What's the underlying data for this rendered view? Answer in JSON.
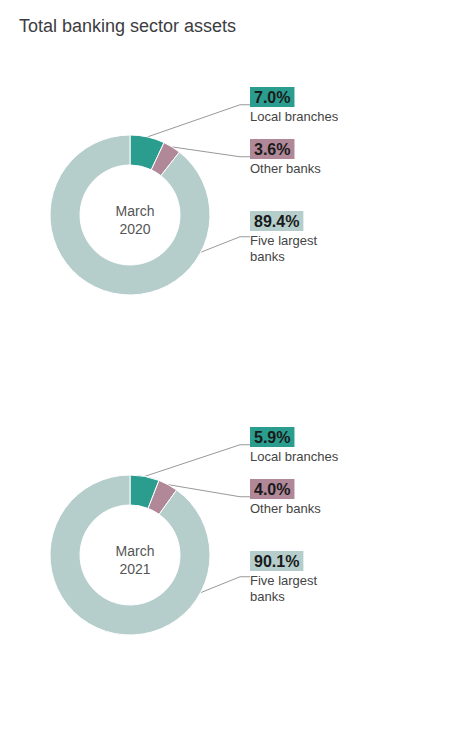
{
  "chart_data": [
    {
      "type": "pie",
      "title": "Total banking sector assets",
      "subtitle": "March\n2020",
      "categories": [
        "Local branches",
        "Other banks",
        "Five largest\nbanks"
      ],
      "values": [
        7.0,
        3.6,
        89.4
      ],
      "value_labels": [
        "7.0%",
        "3.6%",
        "89.4%"
      ],
      "colors": [
        "#2a9d8f",
        "#b08898",
        "#b5cecc"
      ],
      "data_labels": true
    },
    {
      "type": "pie",
      "subtitle": "March\n2021",
      "categories": [
        "Local branches",
        "Other banks",
        "Five largest\nbanks"
      ],
      "values": [
        5.9,
        4.0,
        90.1
      ],
      "value_labels": [
        "5.9%",
        "4.0%",
        "90.1%"
      ],
      "colors": [
        "#2a9d8f",
        "#b08898",
        "#b5cecc"
      ],
      "data_labels": true
    }
  ]
}
